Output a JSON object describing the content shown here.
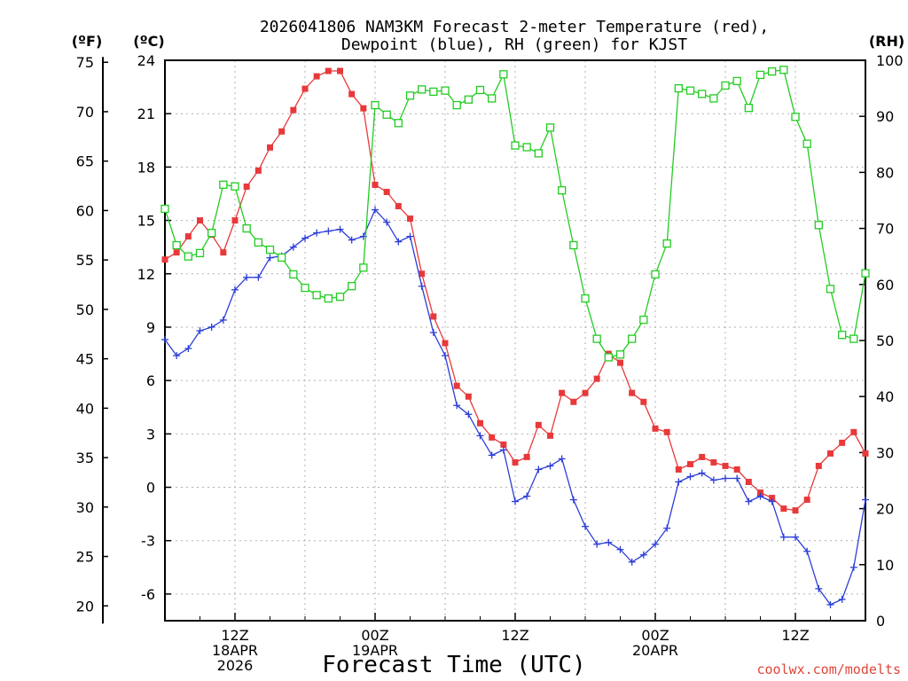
{
  "chart_data": {
    "type": "line",
    "title_line1": "2026041806 NAM3KM Forecast 2-meter Temperature (red),",
    "title_line2": "Dewpoint (blue), RH (green) for KJST",
    "xlabel": "Forecast Time (UTC)",
    "credit": "coolwx.com/modelts",
    "units": {
      "left_f": "(ºF)",
      "left_c": "(ºC)",
      "right_rh": "(RH)"
    },
    "f_ticks": [
      "75",
      "70",
      "65",
      "60",
      "55",
      "50",
      "45",
      "40",
      "35",
      "30",
      "25",
      "20"
    ],
    "f_values": [
      75,
      70,
      65,
      60,
      55,
      50,
      45,
      40,
      35,
      30,
      25,
      20
    ],
    "c_ticks": [
      "24",
      "21",
      "18",
      "15",
      "12",
      "9",
      "6",
      "3",
      "0",
      "-3",
      "-6"
    ],
    "c_values": [
      24,
      21,
      18,
      15,
      12,
      9,
      6,
      3,
      0,
      -3,
      -6
    ],
    "rh_ticks": [
      "100",
      "90",
      "80",
      "70",
      "60",
      "50",
      "40",
      "30",
      "20",
      "10",
      "0"
    ],
    "rh_values": [
      100,
      90,
      80,
      70,
      60,
      50,
      40,
      30,
      20,
      10,
      0
    ],
    "x_range_hours": [
      6,
      66
    ],
    "c_range": [
      -7.5,
      24
    ],
    "rh_range": [
      0,
      100
    ],
    "x_ticks": [
      {
        "hour": 12,
        "lines": [
          "12Z",
          "18APR",
          "2026"
        ]
      },
      {
        "hour": 24,
        "lines": [
          "00Z",
          "19APR"
        ]
      },
      {
        "hour": 36,
        "lines": [
          "12Z"
        ]
      },
      {
        "hour": 48,
        "lines": [
          "00Z",
          "20APR"
        ]
      },
      {
        "hour": 60,
        "lines": [
          "12Z"
        ]
      }
    ],
    "hours": [
      6,
      7,
      8,
      9,
      10,
      11,
      12,
      13,
      14,
      15,
      16,
      17,
      18,
      19,
      20,
      21,
      22,
      23,
      24,
      25,
      26,
      27,
      28,
      29,
      30,
      31,
      32,
      33,
      34,
      35,
      36,
      37,
      38,
      39,
      40,
      41,
      42,
      43,
      44,
      45,
      46,
      47,
      48,
      49,
      50,
      51,
      52,
      53,
      54,
      55,
      56,
      57,
      58,
      59,
      60,
      61,
      62,
      63,
      64,
      65,
      66
    ],
    "series": [
      {
        "name": "Temperature",
        "color": "#e8393a",
        "marker": "square-filled",
        "values": [
          12.8,
          13.2,
          14.1,
          15,
          14.2,
          13.2,
          15,
          16.9,
          17.8,
          19.1,
          20,
          21.2,
          22.4,
          23.1,
          23.4,
          23.4,
          22.1,
          21.3,
          17,
          16.6,
          15.8,
          15.1,
          12,
          9.6,
          8.1,
          5.7,
          5.1,
          3.6,
          2.8,
          2.4,
          1.4,
          1.7,
          3.5,
          2.9,
          5.3,
          4.8,
          5.3,
          6.1,
          7.5,
          7,
          5.3,
          4.8,
          3.3,
          3.1,
          1,
          1.3,
          1.7,
          1.4,
          1.2,
          1,
          0.3,
          -0.3,
          -0.6,
          -1.2,
          -1.3,
          -0.7,
          1.2,
          1.9,
          2.5,
          3.1,
          1.9
        ]
      },
      {
        "name": "Dewpoint",
        "color": "#2c3fd8",
        "marker": "plus",
        "values": [
          8.3,
          7.4,
          7.8,
          8.8,
          9,
          9.4,
          11.1,
          11.8,
          11.8,
          12.9,
          13,
          13.5,
          14,
          14.3,
          14.4,
          14.5,
          13.9,
          14.1,
          15.6,
          14.9,
          13.8,
          14.1,
          11.3,
          8.7,
          7.4,
          4.6,
          4.1,
          2.9,
          1.8,
          2.1,
          -0.8,
          -0.5,
          1,
          1.2,
          1.6,
          -0.7,
          -2.2,
          -3.2,
          -3.1,
          -3.5,
          -4.2,
          -3.8,
          -3.2,
          -2.3,
          0.3,
          0.6,
          0.8,
          0.4,
          0.5,
          0.5,
          -0.8,
          -0.5,
          -0.8,
          -2.8,
          -2.8,
          -3.6,
          -5.7,
          -6.6,
          -6.3,
          -4.5,
          -0.7
        ]
      },
      {
        "name": "RH",
        "color": "#22cc22",
        "marker": "square-open",
        "values": [
          73.5,
          67,
          65,
          65.6,
          69.2,
          77.8,
          77.5,
          70,
          67.5,
          66.2,
          64.8,
          61.8,
          59.4,
          58.1,
          57.5,
          57.8,
          59.7,
          63,
          92,
          90.3,
          88.8,
          93.7,
          94.8,
          94.4,
          94.6,
          92,
          93,
          94.7,
          93.2,
          97.5,
          84.8,
          84.5,
          83.4,
          88,
          76.8,
          67,
          57.5,
          50.3,
          47,
          47.5,
          50.3,
          53.7,
          61.8,
          67.3,
          95,
          94.6,
          94,
          93.2,
          95.5,
          96.3,
          91.5,
          97.4,
          98,
          98.3,
          89.9,
          85.1,
          70.6,
          59.2,
          51,
          50.3,
          62
        ]
      }
    ]
  }
}
